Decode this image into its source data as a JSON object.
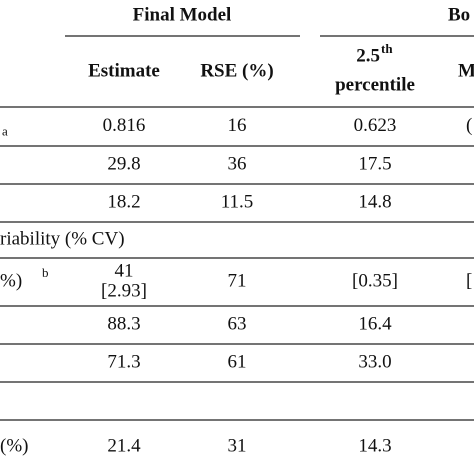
{
  "header": {
    "group1": "Final Model",
    "group2": "Bo",
    "estimate": "Estimate",
    "rse": "RSE (%)",
    "pct_main": "2.5",
    "pct_sup": "th",
    "pct_sub": "percentile",
    "last": "M"
  },
  "rows": [
    {
      "label": "a",
      "cells": [
        "0.816",
        "16",
        "0.623",
        "("
      ]
    },
    {
      "label": "",
      "cells": [
        "29.8",
        "36",
        "17.5",
        ""
      ]
    },
    {
      "label": "",
      "cells": [
        "18.2",
        "11.5",
        "14.8",
        ""
      ]
    },
    {
      "label": "riability (% CV)",
      "cells": [
        "",
        "",
        "",
        ""
      ]
    },
    {
      "label": "%)",
      "label_sup": "b",
      "cells": [
        [
          "41",
          "[2.93]"
        ],
        "71",
        "[0.35]",
        "["
      ]
    },
    {
      "label": "",
      "cells": [
        "88.3",
        "63",
        "16.4",
        ""
      ]
    },
    {
      "label": "",
      "cells": [
        "71.3",
        "61",
        "33.0",
        ""
      ]
    },
    {
      "label": "",
      "cells": [
        "",
        "",
        "",
        ""
      ]
    },
    {
      "label": "(%)",
      "cells": [
        "21.4",
        "31",
        "14.3",
        ""
      ]
    }
  ]
}
